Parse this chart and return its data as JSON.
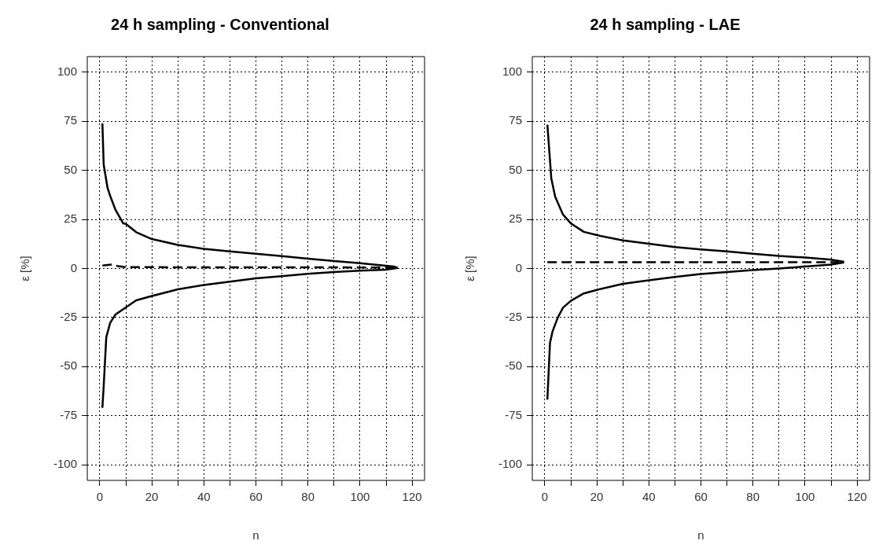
{
  "chart_data": [
    {
      "type": "line",
      "title": "24 h sampling - Conventional",
      "xlabel": "n",
      "ylabel": "ε [%]",
      "xlim": [
        -4.8,
        124.8
      ],
      "xticks": [
        0,
        {
          "value": 10,
          "label": null
        },
        20,
        {
          "value": 30,
          "label": null
        },
        40,
        {
          "value": 50,
          "label": null
        },
        60,
        {
          "value": 70,
          "label": null
        },
        80,
        {
          "value": 90,
          "label": null
        },
        100,
        {
          "value": 110,
          "label": null
        },
        120
      ],
      "ylim": [
        -108,
        108
      ],
      "yticks": [
        -100,
        -75,
        -50,
        -25,
        0,
        25,
        50,
        75,
        100
      ],
      "grid": true,
      "legend": false,
      "marker": "none",
      "series": [
        {
          "color": "#000000",
          "line_style": "solid",
          "x": [
            1,
            1.5,
            3,
            4,
            6,
            9,
            10,
            14,
            20,
            30,
            40,
            50,
            60,
            70,
            80,
            90,
            100,
            110,
            113,
            114.5
          ],
          "values": [
            74,
            53,
            41,
            37,
            30,
            23,
            22.7,
            18.5,
            15,
            12,
            10,
            8.7,
            7.5,
            6.3,
            5,
            3.8,
            2.7,
            1.4,
            1,
            0.3
          ]
        },
        {
          "color": "#000000",
          "line_style": "solid",
          "x": [
            1,
            1.5,
            2.5,
            4,
            6,
            9,
            14,
            20,
            30,
            40,
            50,
            60,
            70,
            80,
            90,
            100,
            110,
            114.5
          ],
          "values": [
            -71,
            -60,
            -35,
            -27.7,
            -23.5,
            -20.7,
            -16.2,
            -14,
            -10.6,
            -8.4,
            -6.7,
            -5,
            -3.9,
            -2.7,
            -1.8,
            -1.1,
            -0.6,
            0.3
          ]
        },
        {
          "color": "#000000",
          "line_style": "dashed",
          "x": [
            1,
            3,
            5,
            7,
            10,
            40,
            80,
            114
          ],
          "values": [
            1.5,
            1.8,
            2,
            1.2,
            0.7,
            0.6,
            0.6,
            0.5
          ]
        }
      ]
    },
    {
      "type": "line",
      "title": "24 h sampling - LAE",
      "xlabel": "n",
      "ylabel": "ε [%]",
      "xlim": [
        -4.8,
        124.8
      ],
      "xticks": [
        0,
        {
          "value": 10,
          "label": null
        },
        20,
        {
          "value": 30,
          "label": null
        },
        40,
        {
          "value": 50,
          "label": null
        },
        60,
        {
          "value": 70,
          "label": null
        },
        80,
        {
          "value": 90,
          "label": null
        },
        100,
        {
          "value": 110,
          "label": null
        },
        120
      ],
      "ylim": [
        -108,
        108
      ],
      "yticks": [
        -100,
        -75,
        -50,
        -25,
        0,
        25,
        50,
        75,
        100
      ],
      "grid": true,
      "legend": false,
      "marker": "none",
      "series": [
        {
          "color": "#000000",
          "line_style": "solid",
          "x": [
            1,
            2.5,
            4,
            7,
            10,
            15,
            20,
            30,
            40,
            50,
            60,
            70,
            80,
            90,
            100,
            110,
            115
          ],
          "values": [
            73.3,
            46,
            36.6,
            27.5,
            23,
            18.7,
            17,
            14.3,
            12.6,
            10.9,
            9.7,
            8.7,
            7.5,
            6.4,
            5.6,
            4.5,
            3.4
          ]
        },
        {
          "color": "#000000",
          "line_style": "solid",
          "x": [
            1,
            2,
            3,
            5,
            7,
            10,
            15,
            20,
            30,
            40,
            50,
            60,
            70,
            80,
            90,
            100,
            110,
            115
          ],
          "values": [
            -66.8,
            -38,
            -32,
            -25,
            -20,
            -16.5,
            -12.7,
            -10.9,
            -7.8,
            -6,
            -4.3,
            -2.8,
            -1.8,
            -0.8,
            0,
            1,
            2,
            3.1
          ]
        },
        {
          "color": "#000000",
          "line_style": "dashed",
          "x": [
            1,
            113
          ],
          "values": [
            3.2,
            3.2
          ]
        }
      ]
    }
  ]
}
